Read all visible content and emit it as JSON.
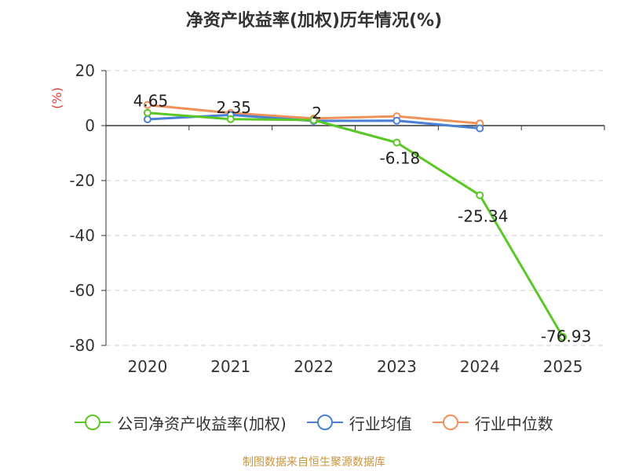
{
  "chart_data": {
    "type": "line",
    "title": "净资产收益率(加权)历年情况(%)",
    "ylabel": "(%)",
    "xlabel": "",
    "categories": [
      "2020",
      "2021",
      "2022",
      "2023",
      "2024",
      "2025"
    ],
    "ylim": [
      -80,
      20
    ],
    "yticks": [
      20,
      0,
      -20,
      -40,
      -60,
      -80
    ],
    "grid": true,
    "legend_position": "bottom",
    "series": [
      {
        "name": "公司净资产收益率(加权)",
        "color": "#5bc726",
        "values": [
          4.65,
          2.35,
          2,
          -6.18,
          -25.34,
          -76.93
        ],
        "labels": [
          "4.65",
          "2.35",
          "2",
          "-6.18",
          "-25.34",
          "-76.93"
        ]
      },
      {
        "name": "行业均值",
        "color": "#4a7fd6",
        "values": [
          2.3,
          3.9,
          1.7,
          1.8,
          -1.0,
          null
        ]
      },
      {
        "name": "行业中位数",
        "color": "#f0905a",
        "values": [
          7.5,
          4.6,
          2.6,
          3.4,
          0.8,
          null
        ]
      }
    ]
  },
  "source": "制图数据来自恒生聚源数据库",
  "colors": {
    "axis_label": "#e03c3c",
    "grid": "#cccccc",
    "axis": "#333333",
    "ticks_text": "#333333"
  }
}
